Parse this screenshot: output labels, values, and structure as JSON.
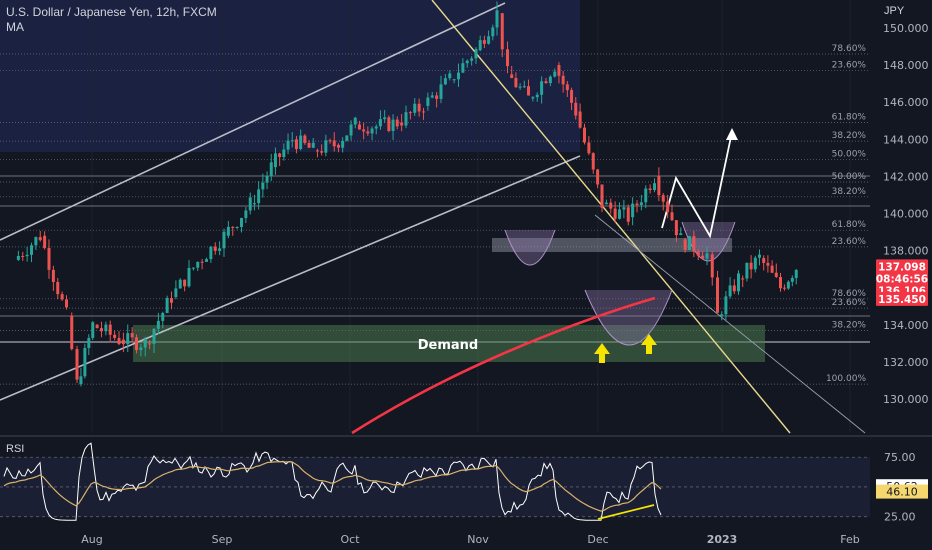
{
  "header": {
    "title": "U.S. Dollar / Japanese Yen, 12h, FXCM",
    "indicator": "MA",
    "currency": "JPY"
  },
  "price_tags": [
    {
      "id": "last",
      "lines": [
        "137.098",
        "08:46:56",
        "136.106"
      ],
      "value": 137.098,
      "color": "#f23645"
    },
    {
      "id": "ma",
      "lines": [
        "135.450"
      ],
      "value": 135.45,
      "color": "#f23645"
    }
  ],
  "colors": {
    "background": "#131722",
    "up_candle": "#26a69a",
    "down_candle": "#ef5350",
    "moving_average": "#f23645",
    "demand_zone": "#4a7a4e",
    "trendline": "#e8d98a",
    "rsi_line": "#ffffff",
    "rsi_ma": "#d8b26a"
  },
  "annotations": {
    "demand_label": "Demand",
    "arrows": [
      "up-arrow",
      "up-arrow"
    ],
    "projection": "white zigzag path"
  },
  "chart_data": [
    {
      "type": "line",
      "title": "U.S. Dollar / Japanese Yen, 12h, FXCM",
      "x_ticks": [
        "Aug",
        "Sep",
        "Oct",
        "Nov",
        "Dec",
        "2023",
        "Feb"
      ],
      "y_ticks": [
        "130.000",
        "132.000",
        "134.000",
        "136.000",
        "138.000",
        "140.000",
        "142.000",
        "144.000",
        "146.000",
        "148.000",
        "150.000"
      ],
      "ylim": [
        128.2,
        151.2
      ],
      "y_axis_side": "right",
      "series": [
        {
          "name": "",
          "x": [
            "Jul 21",
            "Jul 26",
            "Jul 31",
            "Aug 2",
            "Aug 5",
            "Aug 10",
            "Aug 15",
            "Aug 20",
            "Aug 25",
            "Aug 30",
            "Sep 4",
            "Sep 8",
            "Sep 12",
            "Sep 16",
            "Sep 20",
            "Sep 24",
            "Sep 28",
            "Oct 2",
            "Oct 7",
            "Oct 12",
            "Oct 17",
            "Oct 21",
            "Oct 23",
            "Oct 27",
            "Nov 1",
            "Nov 5",
            "Nov 10",
            "Nov 15",
            "Nov 20",
            "Nov 25",
            "Nov 30",
            "Dec 2",
            "Dec 6",
            "Dec 10",
            "Dec 14",
            "Dec 17"
          ],
          "y": [
            137.5,
            138.8,
            134.5,
            130.8,
            134.0,
            133.2,
            133.0,
            135.5,
            137.4,
            138.8,
            140.5,
            142.5,
            144.0,
            143.4,
            143.7,
            144.8,
            144.7,
            144.9,
            145.8,
            147.2,
            148.8,
            150.8,
            147.5,
            146.2,
            148.0,
            145.5,
            140.5,
            139.8,
            142.0,
            138.6,
            137.8,
            134.5,
            136.5,
            137.6,
            136.0,
            137.1
          ]
        }
      ],
      "fib_levels": [
        {
          "label": "78.60%",
          "value": 148.6
        },
        {
          "label": "23.60%",
          "value": 147.7
        },
        {
          "label": "61.80%",
          "value": 144.9
        },
        {
          "label": "38.20%",
          "value": 143.9
        },
        {
          "label": "50.00%",
          "value": 142.9
        },
        {
          "label": "50.00%",
          "value": 141.7
        },
        {
          "label": "38.20%",
          "value": 140.9
        },
        {
          "label": "61.80%",
          "value": 139.1
        },
        {
          "label": "23.60%",
          "value": 138.2
        },
        {
          "label": "78.60%",
          "value": 135.4
        },
        {
          "label": "23.60%",
          "value": 134.9
        },
        {
          "label": "38.20%",
          "value": 133.7
        },
        {
          "label": "100.00%",
          "value": 130.8
        }
      ],
      "demand_zone": [
        132.0,
        134.0
      ]
    },
    {
      "type": "line",
      "title": "RSI",
      "y_ticks": [
        "75.00",
        "25.00"
      ],
      "ylim": [
        18,
        92
      ],
      "last_values": [
        {
          "value": 50.62,
          "label": "50.62",
          "color": "#ffffff"
        },
        {
          "value": 46.1,
          "label": "46.10",
          "color": "#f5d76e"
        }
      ]
    }
  ]
}
